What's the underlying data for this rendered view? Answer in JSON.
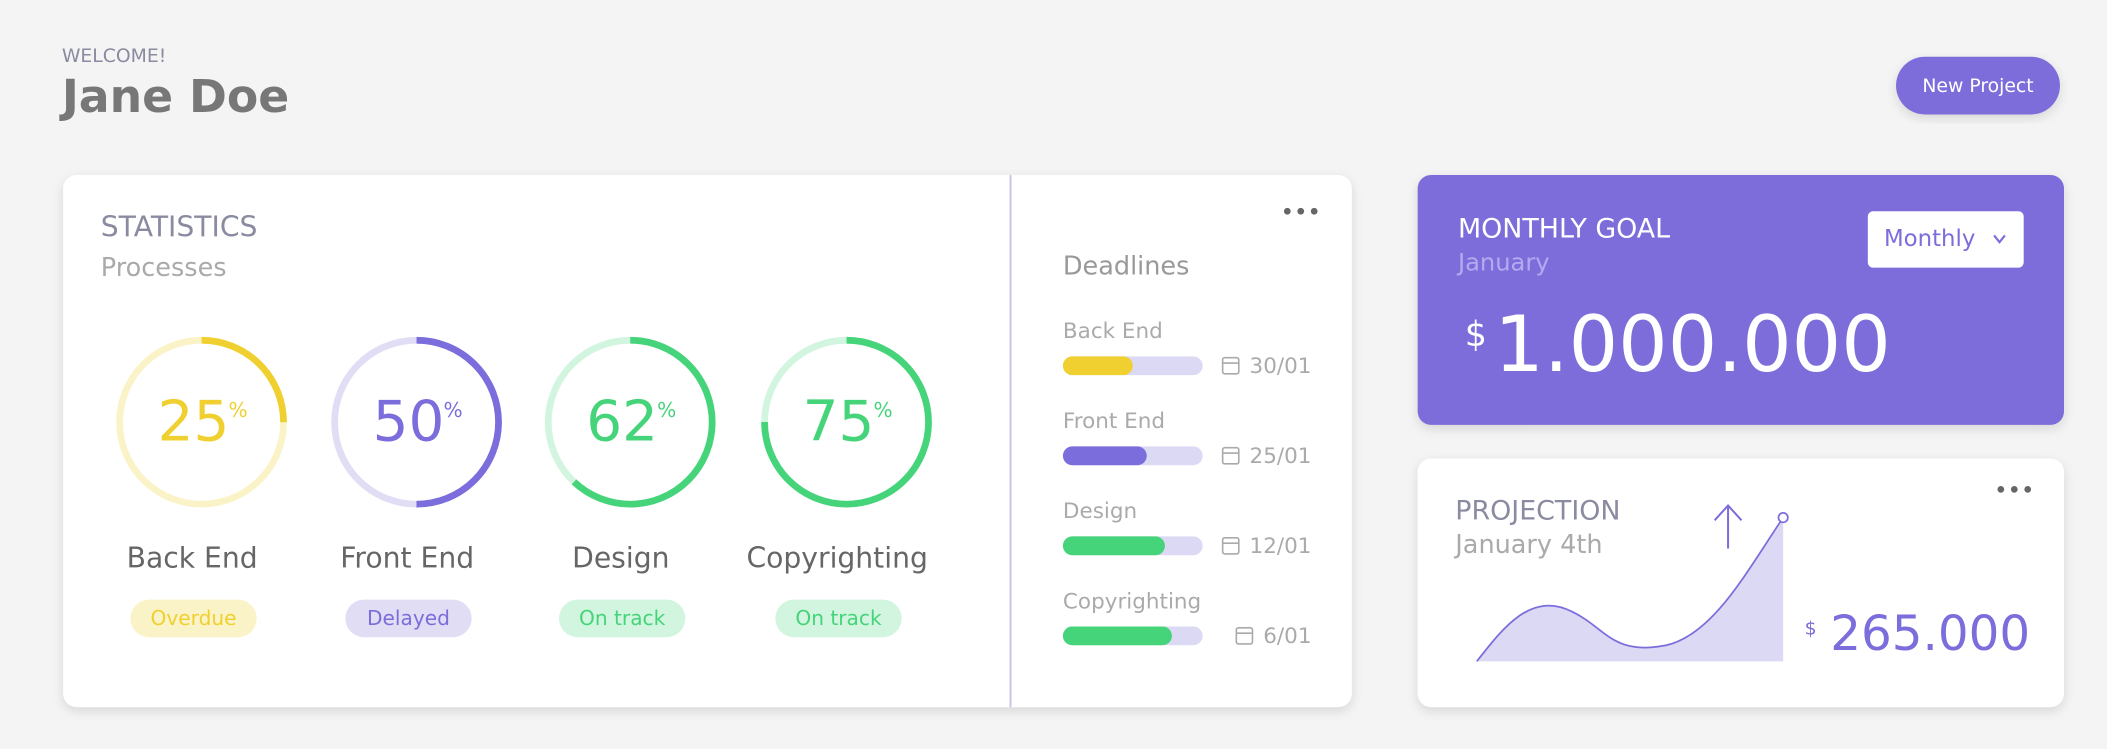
{
  "header": {
    "welcome": "WELCOME!",
    "name": "Jane Doe",
    "button": "New Project"
  },
  "statistics": {
    "title": "STATISTICS",
    "subtitle": "Processes",
    "unit": "%",
    "items": [
      {
        "name": "Back End",
        "value": 25,
        "status": "Overdue",
        "color": "#f0d030",
        "track_color": "#fbf3c8"
      },
      {
        "name": "Front End",
        "value": 50,
        "status": "Delayed",
        "color": "#7b6ddb",
        "track_color": "#e0ddf5"
      },
      {
        "name": "Design",
        "value": 62,
        "status": "On track",
        "color": "#45d47a",
        "track_color": "#d2f5df"
      },
      {
        "name": "Copyrighting",
        "value": 75,
        "status": "On track",
        "color": "#45d47a",
        "track_color": "#d2f5df"
      }
    ]
  },
  "deadlines": {
    "title": "Deadlines",
    "items": [
      {
        "name": "Back End",
        "progress": 50,
        "date": "30/01",
        "color": "#f0d030"
      },
      {
        "name": "Front End",
        "progress": 60,
        "date": "25/01",
        "color": "#7b6ddb"
      },
      {
        "name": "Design",
        "progress": 73,
        "date": "12/01",
        "color": "#45d47a"
      },
      {
        "name": "Copyrighting",
        "progress": 78,
        "date": "6/01",
        "color": "#45d47a"
      }
    ]
  },
  "monthly_goal": {
    "title": "MONTHLY GOAL",
    "subtitle": "January",
    "dropdown": "Monthly",
    "currency": "$",
    "amount": "1.000.000"
  },
  "projection": {
    "title": "PROJECTION",
    "subtitle": "January 4th",
    "currency": "$",
    "amount": "265.000"
  }
}
